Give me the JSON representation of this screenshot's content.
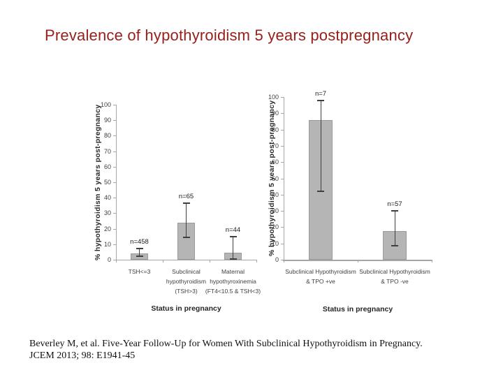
{
  "slide": {
    "title": "Prevalence of hypothyroidism 5 years postpregnancy",
    "title_color": "#96201b",
    "citation": {
      "line1": "Beverley M, et al. Five-Year Follow-Up for Women With Subclinical Hypothyroidism in Pregnancy.",
      "line2": "JCEM 2013; 98: E1941-45"
    }
  },
  "chart_data": [
    {
      "type": "bar",
      "title": "",
      "xlabel": "Status in pregnancy",
      "ylabel": "% hypothyroidism 5 years post-pregnancy",
      "ylim": [
        0,
        100
      ],
      "yticks": [
        0,
        10,
        20,
        30,
        40,
        50,
        60,
        70,
        80,
        90,
        100
      ],
      "grid": false,
      "legend": false,
      "bar_color": "#b5b5b5",
      "bar_border_color": "#9a9a9a",
      "axis_color": "#a6a6a6",
      "error_bar_color": "#3f3f3f",
      "categories": [
        "TSH<=3",
        "Subclinical\nhypothyroidism\n(TSH>3)",
        "Maternal\nhypothyroxinemia\n(FT4<10.5 & TSH<3)"
      ],
      "series": [
        {
          "name": "% hypothyroidism 5 years post-pregnancy",
          "values": [
            4.2,
            24,
            4.4
          ],
          "error_low": [
            2.3,
            14.5,
            0.5
          ],
          "error_high": [
            7.3,
            36.5,
            15
          ],
          "n_labels": [
            "n=458",
            "n=65",
            "n=44"
          ]
        }
      ]
    },
    {
      "type": "bar",
      "title": "",
      "xlabel": "Status in pregnancy",
      "ylabel": "% hypothyroidism 5 years post-pregnancy",
      "ylim": [
        0,
        100
      ],
      "yticks": [
        0,
        10,
        20,
        30,
        40,
        50,
        60,
        70,
        80,
        90,
        100
      ],
      "grid": false,
      "legend": false,
      "bar_color": "#b5b5b5",
      "bar_border_color": "#9a9a9a",
      "axis_color": "#a6a6a6",
      "error_bar_color": "#3f3f3f",
      "categories": [
        "Subclinical Hypothyroidism\n& TPO +ve",
        "Subclinical Hypothyroidism\n& TPO -ve"
      ],
      "series": [
        {
          "name": "% hypothyroidism 5 years post-pregnancy",
          "values": [
            86,
            17.5
          ],
          "error_low": [
            42,
            8.5
          ],
          "error_high": [
            98,
            30
          ],
          "n_labels": [
            "n=7",
            "n=57"
          ]
        }
      ]
    }
  ]
}
